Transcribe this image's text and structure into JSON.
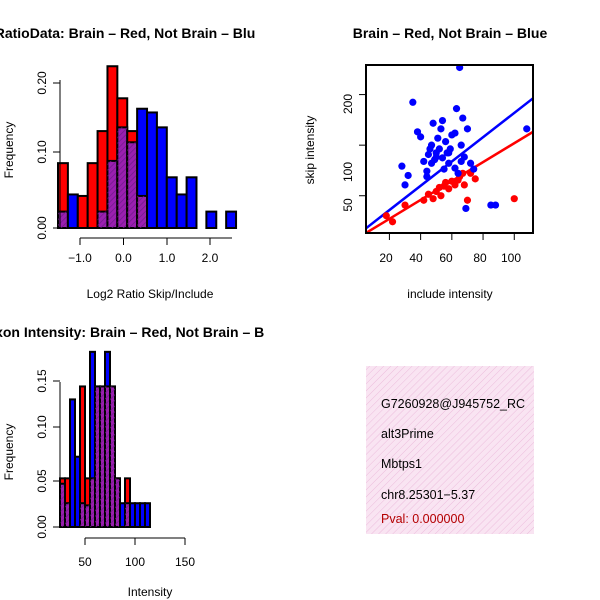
{
  "colors": {
    "red": "#ff0000",
    "blue": "#0000ff",
    "overlap": "#9b1fb0",
    "info_bg": "#f5d6ec",
    "pval": "#b40000"
  },
  "chart_data": [
    {
      "id": "ratio",
      "type": "bar",
      "title": "RatioData: Brain – Red, Not Brain – Blu",
      "xlabel": "Log2 Ratio Skip/Include",
      "ylabel": "Frequency",
      "xlim": [
        -1.2,
        2.5
      ],
      "ylim": [
        0,
        0.22
      ],
      "bin_start": -1.2,
      "bin_width": 0.2,
      "xticks": [
        -1.0,
        0.0,
        1.0,
        2.0
      ],
      "xtick_labels": [
        "−1.0",
        "0.0",
        "1.0",
        "2.0"
      ],
      "yticks": [
        0.0,
        0.1,
        0.2
      ],
      "ytick_labels": [
        "0.00",
        "0.10",
        "0.20"
      ],
      "series": [
        {
          "name": "Brain",
          "color": "red",
          "values": [
            0.087,
            0.0,
            0.043,
            0.087,
            0.13,
            0.217,
            0.174,
            0.13,
            0.043,
            0.0,
            0.0,
            0.0,
            0.0,
            0.0,
            0.0,
            0.0,
            0.0,
            0.0
          ]
        },
        {
          "name": "Not Brain",
          "color": "blue",
          "values": [
            0.022,
            0.045,
            0.0,
            0.0,
            0.022,
            0.09,
            0.135,
            0.115,
            0.16,
            0.155,
            0.135,
            0.068,
            0.045,
            0.068,
            0.0,
            0.022,
            0.0,
            0.022
          ]
        }
      ]
    },
    {
      "id": "scatter",
      "type": "scatter",
      "title": "Brain – Red, Not Brain – Blue",
      "xlabel": "include intensity",
      "ylabel": "skip intensity",
      "xlim": [
        5,
        112
      ],
      "ylim_log": [
        30,
        300
      ],
      "xticks": [
        20,
        40,
        60,
        80,
        100
      ],
      "yticks": [
        50,
        100,
        200
      ],
      "series": [
        {
          "name": "Brain",
          "color": "red",
          "x": [
            18,
            22,
            30,
            42,
            45,
            48,
            50,
            52,
            53,
            55,
            56,
            58,
            60,
            62,
            64,
            65,
            67,
            68,
            70,
            72,
            75,
            100
          ],
          "y": [
            38,
            35,
            44,
            47,
            51,
            48,
            53,
            56,
            50,
            57,
            60,
            55,
            61,
            58,
            62,
            65,
            68,
            58,
            47,
            68,
            63,
            48
          ]
        },
        {
          "name": "Not Brain",
          "color": "blue",
          "x": [
            28,
            30,
            35,
            38,
            40,
            42,
            44,
            45,
            46,
            47,
            48,
            49,
            50,
            51,
            52,
            53,
            54,
            55,
            56,
            57,
            58,
            59,
            60,
            62,
            63,
            64,
            65,
            66,
            67,
            68,
            70,
            72,
            74,
            85,
            88,
            108,
            32,
            44,
            54,
            58,
            62,
            66,
            69,
            50,
            47
          ],
          "y": [
            75,
            58,
            180,
            120,
            112,
            80,
            70,
            88,
            95,
            78,
            135,
            82,
            90,
            110,
            95,
            125,
            84,
            72,
            105,
            90,
            78,
            95,
            115,
            118,
            165,
            68,
            290,
            100,
            145,
            85,
            125,
            78,
            72,
            44,
            44,
            125,
            66,
            65,
            140,
            90,
            73,
            80,
            42,
            85,
            100
          ]
        }
      ],
      "fits": [
        {
          "color": "blue",
          "from": [
            5,
            32
          ],
          "to": [
            112,
            190
          ]
        },
        {
          "color": "red",
          "from": [
            5,
            30
          ],
          "to": [
            112,
            120
          ]
        }
      ]
    },
    {
      "id": "intensity",
      "type": "bar",
      "title": "Exon Intensity: Brain – Red, Not Brain – B",
      "xlabel": "Intensity",
      "ylabel": "Frequency",
      "xlim": [
        40,
        190
      ],
      "ylim": [
        0,
        0.16
      ],
      "bin_start": 40,
      "bin_width": 5,
      "xticks": [
        50,
        100,
        150
      ],
      "xtick_labels": [
        "50",
        "100",
        "150"
      ],
      "yticks": [
        0.0,
        0.05,
        0.1,
        0.15
      ],
      "ytick_labels": [
        "0.00",
        "0.05",
        "0.10",
        "0.15"
      ],
      "series": [
        {
          "name": "Brain",
          "color": "red",
          "values": [
            0.045,
            0.045,
            0.0,
            0.0,
            0.13,
            0.045,
            0.045,
            0.13,
            0.13,
            0.13,
            0.13,
            0.045,
            0.0,
            0.045,
            0.0,
            0.0,
            0.0,
            0.0,
            0.0,
            0.0,
            0.0,
            0.0,
            0.0,
            0.0,
            0.0,
            0.0,
            0.0,
            0.0,
            0.0,
            0.0
          ]
        },
        {
          "name": "Not Brain",
          "color": "blue",
          "values": [
            0.04,
            0.022,
            0.118,
            0.065,
            0.022,
            0.02,
            0.162,
            0.13,
            0.13,
            0.162,
            0.13,
            0.045,
            0.022,
            0.022,
            0.022,
            0.022,
            0.022,
            0.022,
            0.0,
            0.0,
            0.0,
            0.0,
            0.0,
            0.0,
            0.0,
            0.0,
            0.0,
            0.0,
            0.0,
            0.0
          ]
        }
      ]
    }
  ],
  "info": {
    "lines": [
      "G7260928@J945752_RC",
      "alt3Prime",
      "Mbtps1",
      "chr8.25301−5.37"
    ],
    "pval": "Pval: 0.000000"
  }
}
